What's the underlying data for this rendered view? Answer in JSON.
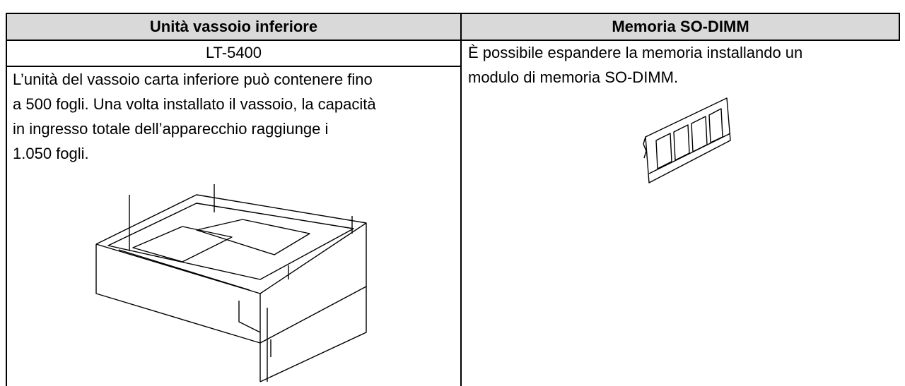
{
  "table": {
    "left": {
      "header": "Unità vassoio inferiore",
      "model": "LT-5400",
      "description_lines": [
        "L’unità del vassoio carta inferiore può contenere fino",
        "a 500 fogli. Una volta installato il vassoio, la capacità",
        "in ingresso totale dell’apparecchio raggiunge i",
        "1.050 fogli."
      ]
    },
    "right": {
      "header": "Memoria SO-DIMM",
      "description_lines": [
        "È possibile espandere la memoria installando un",
        "modulo di memoria SO-DIMM."
      ]
    }
  }
}
